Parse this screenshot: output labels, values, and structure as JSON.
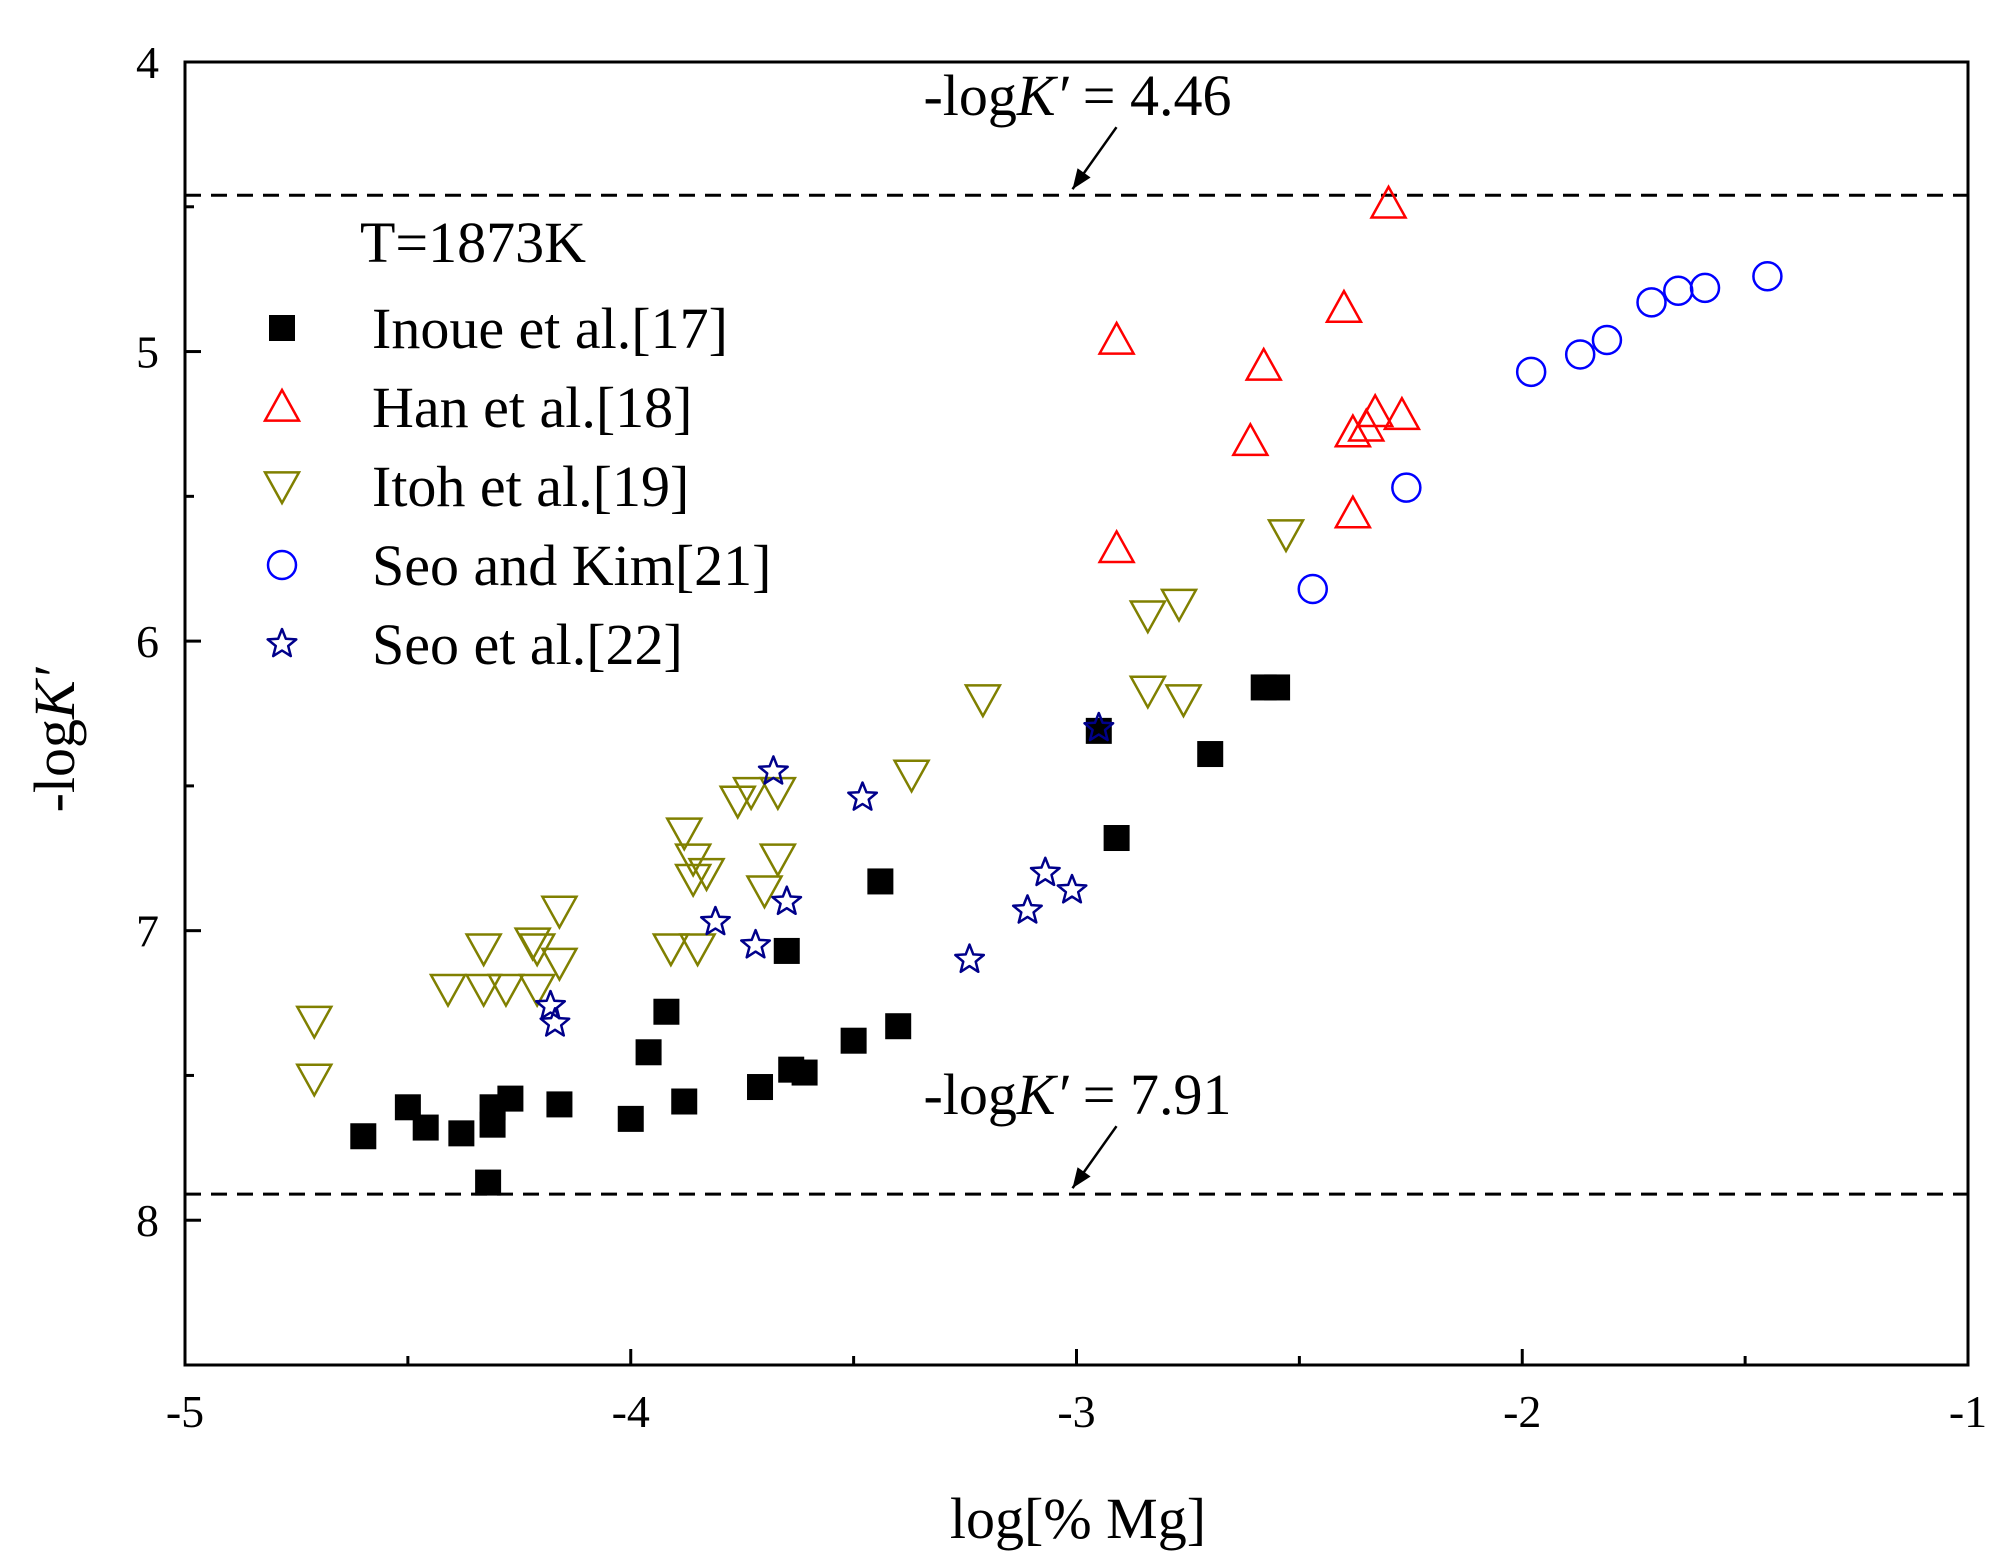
{
  "chart_data": {
    "type": "scatter",
    "title": "",
    "xlabel": "log[% Mg]",
    "ylabel_prefix": "-log",
    "ylabel_var": "K′",
    "xlim": [
      -5,
      -1
    ],
    "ylim": [
      4,
      8.5
    ],
    "y_inverted": true,
    "xticks": [
      -5,
      -4,
      -3,
      -2,
      -1
    ],
    "xtick_labels": [
      "-5",
      "-4",
      "-3",
      "-2",
      "-1"
    ],
    "yticks": [
      4,
      5,
      6,
      7,
      8
    ],
    "ytick_labels": [
      "4",
      "5",
      "6",
      "7",
      "8"
    ],
    "grid": false,
    "legend_position": "top-left",
    "legend_title": "T=1873K",
    "reference_lines": [
      {
        "y": 4.46,
        "label_prefix": "-log",
        "label_var": "K′",
        "label_suffix": " = 4.46",
        "arrow_to_x": -3.0
      },
      {
        "y": 7.91,
        "label_prefix": "-log",
        "label_var": "K′",
        "label_suffix": " = 7.91",
        "arrow_to_x": -3.0
      }
    ],
    "series": [
      {
        "name": "Inoue et al.[17]",
        "marker": "square-filled",
        "color": "#000000",
        "points": [
          [
            -4.6,
            7.71
          ],
          [
            -4.5,
            7.61
          ],
          [
            -4.46,
            7.68
          ],
          [
            -4.38,
            7.7
          ],
          [
            -4.32,
            7.87
          ],
          [
            -4.31,
            7.67
          ],
          [
            -4.31,
            7.61
          ],
          [
            -4.27,
            7.58
          ],
          [
            -4.16,
            7.6
          ],
          [
            -4.0,
            7.65
          ],
          [
            -3.96,
            7.42
          ],
          [
            -3.92,
            7.28
          ],
          [
            -3.88,
            7.59
          ],
          [
            -3.71,
            7.54
          ],
          [
            -3.65,
            7.07
          ],
          [
            -3.64,
            7.48
          ],
          [
            -3.61,
            7.49
          ],
          [
            -3.5,
            7.38
          ],
          [
            -3.44,
            6.83
          ],
          [
            -3.4,
            7.33
          ],
          [
            -2.95,
            6.31
          ],
          [
            -2.91,
            6.68
          ],
          [
            -2.7,
            6.39
          ],
          [
            -2.58,
            6.16
          ],
          [
            -2.55,
            6.16
          ]
        ]
      },
      {
        "name": "Han et al.[18]",
        "marker": "triangle-up-open",
        "color": "#ff0000",
        "points": [
          [
            -2.91,
            4.96
          ],
          [
            -2.91,
            5.68
          ],
          [
            -2.61,
            5.31
          ],
          [
            -2.58,
            5.05
          ],
          [
            -2.4,
            4.85
          ],
          [
            -2.38,
            5.28
          ],
          [
            -2.38,
            5.56
          ],
          [
            -2.35,
            5.26
          ],
          [
            -2.33,
            5.21
          ],
          [
            -2.3,
            4.49
          ],
          [
            -2.27,
            5.22
          ]
        ]
      },
      {
        "name": "Itoh et al.[19]",
        "marker": "triangle-down-open",
        "color": "#808000",
        "points": [
          [
            -4.71,
            7.31
          ],
          [
            -4.71,
            7.51
          ],
          [
            -4.41,
            7.2
          ],
          [
            -4.33,
            7.06
          ],
          [
            -4.33,
            7.2
          ],
          [
            -4.28,
            7.2
          ],
          [
            -4.22,
            7.04
          ],
          [
            -4.21,
            7.06
          ],
          [
            -4.21,
            7.2
          ],
          [
            -4.16,
            6.93
          ],
          [
            -4.16,
            7.11
          ],
          [
            -3.91,
            7.06
          ],
          [
            -3.88,
            6.66
          ],
          [
            -3.86,
            6.75
          ],
          [
            -3.86,
            6.82
          ],
          [
            -3.85,
            7.06
          ],
          [
            -3.83,
            6.8
          ],
          [
            -3.76,
            6.55
          ],
          [
            -3.73,
            6.52
          ],
          [
            -3.7,
            6.86
          ],
          [
            -3.67,
            6.75
          ],
          [
            -3.67,
            6.52
          ],
          [
            -3.37,
            6.46
          ],
          [
            -3.21,
            6.2
          ],
          [
            -2.84,
            6.17
          ],
          [
            -2.84,
            5.91
          ],
          [
            -2.77,
            5.87
          ],
          [
            -2.76,
            6.2
          ],
          [
            -2.53,
            5.63
          ]
        ]
      },
      {
        "name": "Seo and Kim[21]",
        "marker": "circle-open",
        "color": "#0000ff",
        "points": [
          [
            -2.47,
            5.82
          ],
          [
            -2.26,
            5.47
          ],
          [
            -1.98,
            5.07
          ],
          [
            -1.87,
            5.01
          ],
          [
            -1.81,
            4.96
          ],
          [
            -1.71,
            4.83
          ],
          [
            -1.65,
            4.79
          ],
          [
            -1.59,
            4.78
          ],
          [
            -1.45,
            4.74
          ]
        ]
      },
      {
        "name": "Seo et al.[22]",
        "marker": "star-open",
        "color": "#00008b",
        "points": [
          [
            -4.18,
            7.26
          ],
          [
            -4.17,
            7.32
          ],
          [
            -3.81,
            6.97
          ],
          [
            -3.72,
            7.05
          ],
          [
            -3.68,
            6.45
          ],
          [
            -3.65,
            6.9
          ],
          [
            -3.48,
            6.54
          ],
          [
            -3.24,
            7.1
          ],
          [
            -3.11,
            6.93
          ],
          [
            -3.07,
            6.8
          ],
          [
            -3.01,
            6.86
          ],
          [
            -2.95,
            6.3
          ]
        ]
      }
    ]
  }
}
